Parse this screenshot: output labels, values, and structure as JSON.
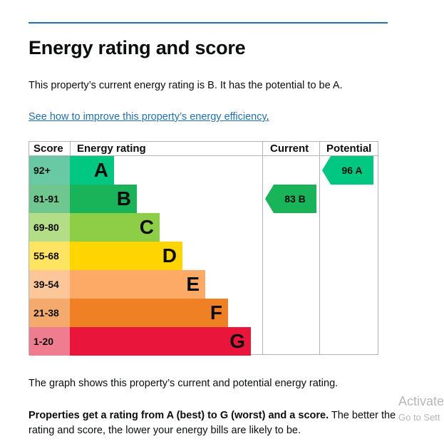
{
  "page": {
    "title": "Energy rating and score",
    "intro": "This property’s current energy rating is B. It has the potential to be A.",
    "improve_link": "See how to improve this property’s energy efficiency",
    "improve_link_suffix": ".",
    "graph_note": "The graph shows this property’s current and potential energy rating.",
    "rating_note_bold": "Properties get a rating from A (best) to G (worst) and a score.",
    "rating_note_rest": " The better the rating and score, the lower your energy bills are likely to be."
  },
  "table": {
    "headers": {
      "score": "Score",
      "rating": "Energy rating",
      "current": "Current",
      "potential": "Potential"
    },
    "bands": [
      {
        "score": "92+",
        "letter": "A",
        "color": "#00c781",
        "score_bg": "#69c9a4"
      },
      {
        "score": "81-91",
        "letter": "B",
        "color": "#19b459",
        "score_bg": "#6fc78f"
      },
      {
        "score": "69-80",
        "letter": "C",
        "color": "#8dce46",
        "score_bg": "#b3dd86"
      },
      {
        "score": "55-68",
        "letter": "D",
        "color": "#ffd500",
        "score_bg": "#ffe462"
      },
      {
        "score": "39-54",
        "letter": "E",
        "color": "#fcaa65",
        "score_bg": "#fdc699"
      },
      {
        "score": "21-38",
        "letter": "F",
        "color": "#ef8023",
        "score_bg": "#f4aa6c"
      },
      {
        "score": "1-20",
        "letter": "G",
        "color": "#e9153b",
        "score_bg": "#f07c8f"
      }
    ],
    "current": {
      "label": "83  B",
      "band_index": 1,
      "color": "#19b459"
    },
    "potential": {
      "label": "96  A",
      "band_index": 0,
      "color": "#00c781"
    }
  },
  "watermark": {
    "line1": "Activate",
    "line2": "Go to Sett"
  }
}
